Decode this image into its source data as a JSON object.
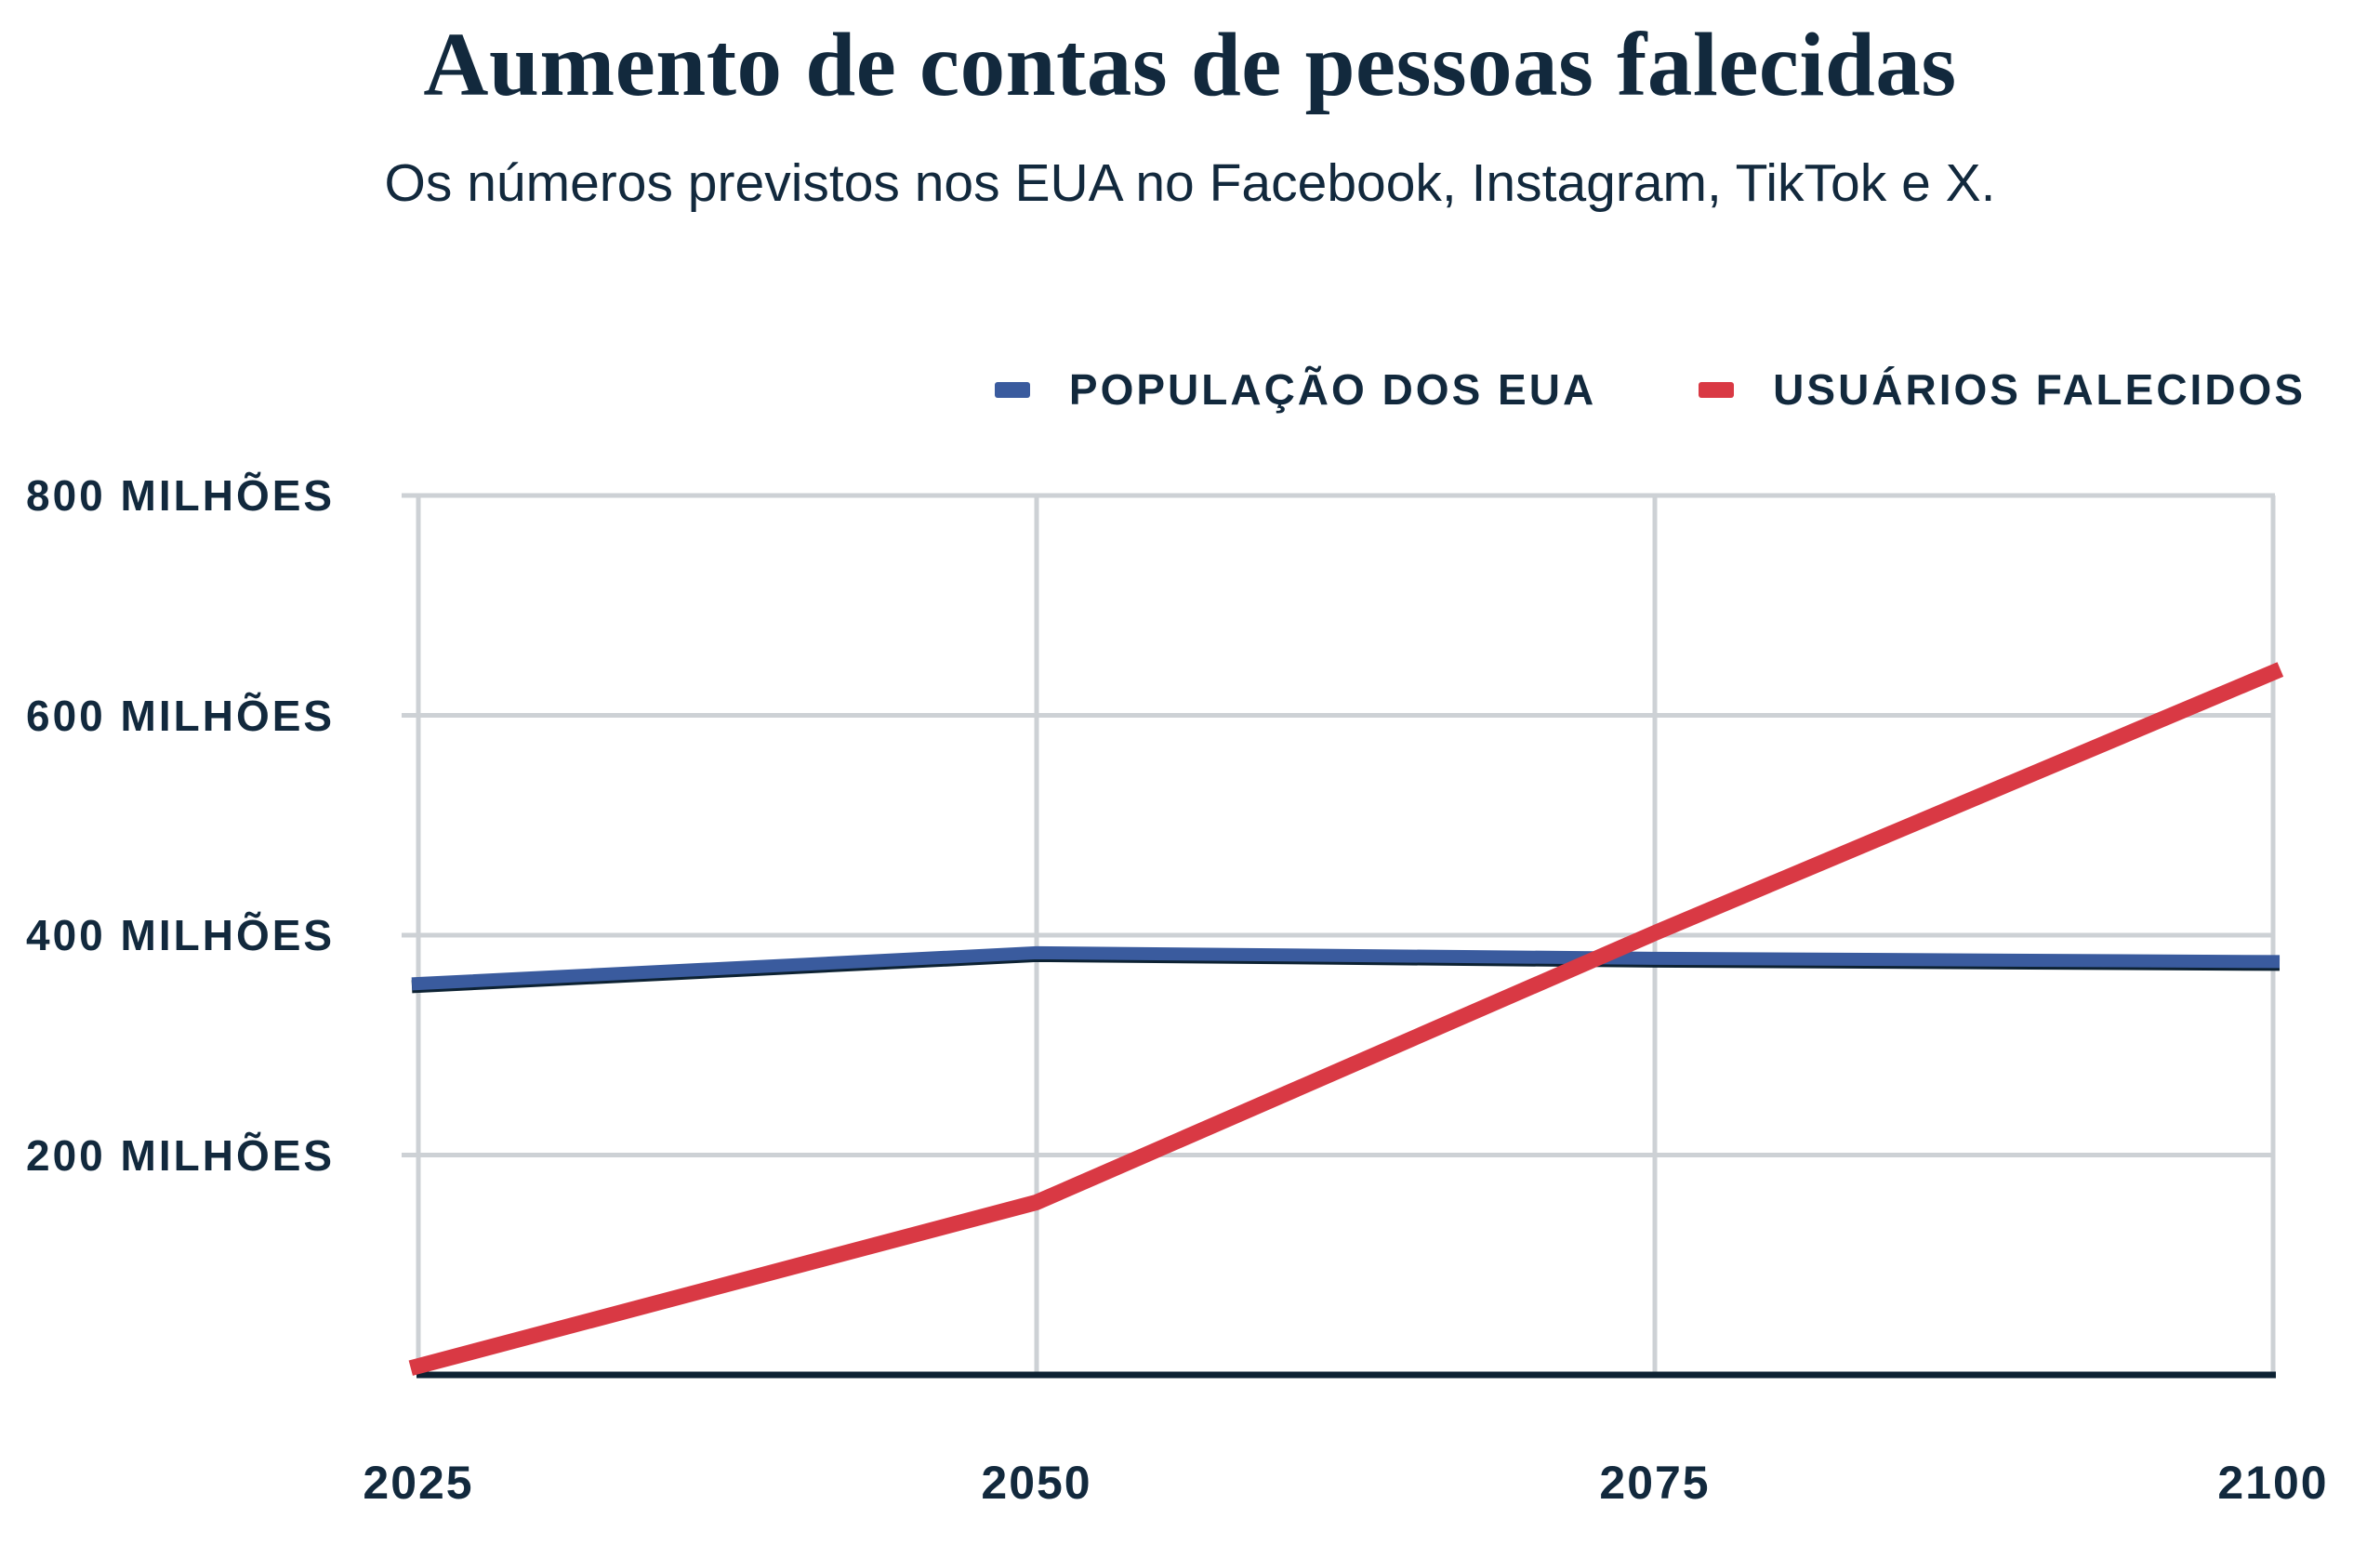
{
  "header": {
    "title": "Aumento de contas de pessoas falecidas",
    "subtitle": "Os números previstos nos EUA no Facebook, Instagram, TikTok e X."
  },
  "colors": {
    "text": "#12293d",
    "grid": "#cdd1d5",
    "axis": "#0d2233",
    "population_line": "#3a5b9e",
    "deceased_line": "#d93944"
  },
  "chart_data": {
    "type": "line",
    "x": [
      2025,
      2050,
      2075,
      2100
    ],
    "x_tick_labels": [
      "2025",
      "2050",
      "2075",
      "2100"
    ],
    "y_ticks": [
      {
        "value": 200,
        "label": "200 MILHÕES"
      },
      {
        "value": 400,
        "label": "400 MILHÕES"
      },
      {
        "value": 600,
        "label": "600 MILHÕES"
      },
      {
        "value": 800,
        "label": "800 MILHÕES"
      }
    ],
    "xlim": [
      2025,
      2100
    ],
    "ylim": [
      0,
      800
    ],
    "unit": "milhões",
    "grid": true,
    "legend_position": "top-right",
    "series": [
      {
        "name": "POPULAÇÃO DOS EUA",
        "color": "#3a5b9e",
        "values": [
          356,
          384,
          379,
          376
        ]
      },
      {
        "name": "USUÁRIOS FALECIDOS",
        "color": "#d93944",
        "values": [
          8,
          157,
          402,
          639
        ]
      }
    ]
  }
}
